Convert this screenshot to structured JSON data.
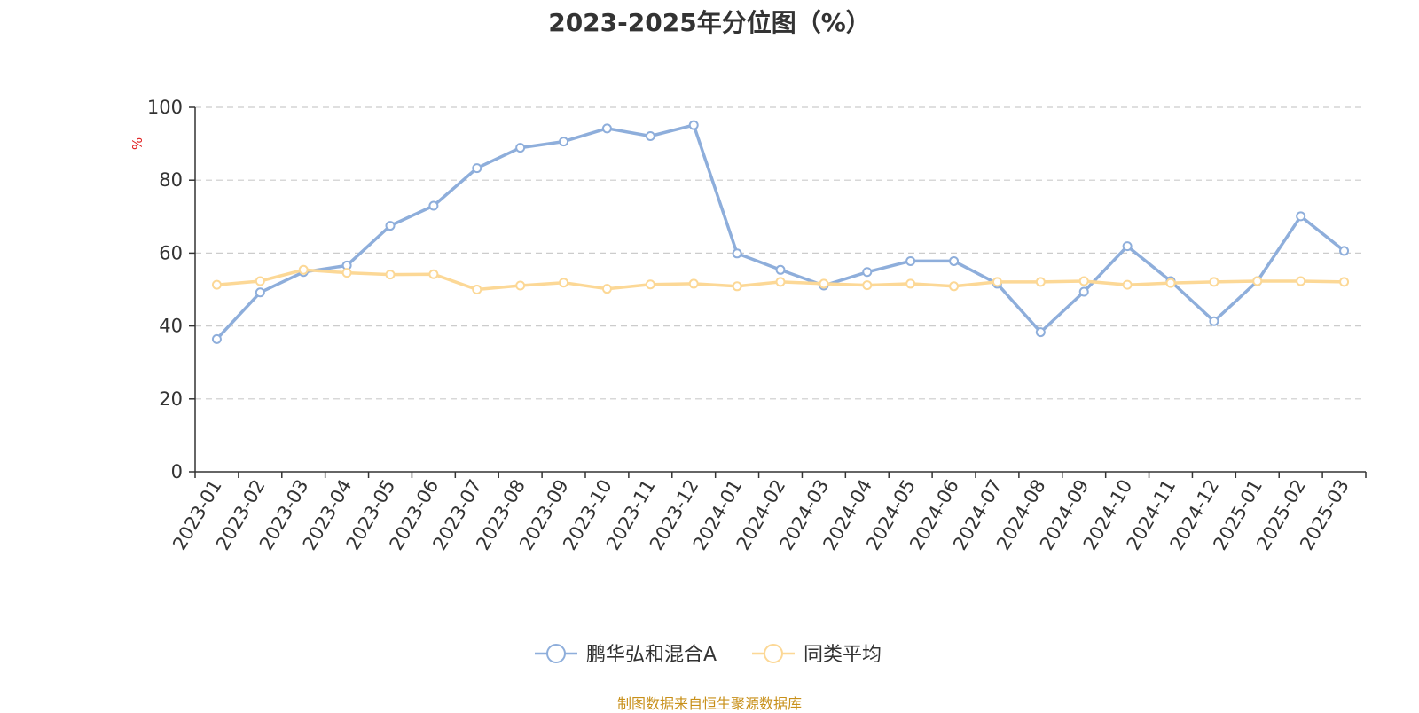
{
  "title": "2023-2025年分位图（%）",
  "source_note": "制图数据来自恒生聚源数据库",
  "colors": {
    "series1": "#8eaedb",
    "series2": "#fcd896",
    "grid": "#cccccc",
    "axis": "#333333",
    "ylabel": "#e02020",
    "source": "#c8901a"
  },
  "chart_data": {
    "type": "line",
    "title": "2023-2025年分位图（%）",
    "xlabel": "",
    "ylabel": "%",
    "ylim": [
      0,
      100
    ],
    "yticks": [
      0,
      20,
      40,
      60,
      80,
      100
    ],
    "grid": true,
    "legend_position": "bottom",
    "categories": [
      "2023-01",
      "2023-02",
      "2023-03",
      "2023-04",
      "2023-05",
      "2023-06",
      "2023-07",
      "2023-08",
      "2023-09",
      "2023-10",
      "2023-11",
      "2023-12",
      "2024-01",
      "2024-02",
      "2024-03",
      "2024-04",
      "2024-05",
      "2024-06",
      "2024-07",
      "2024-08",
      "2024-09",
      "2024-10",
      "2024-11",
      "2024-12",
      "2025-01",
      "2025-02",
      "2025-03"
    ],
    "series": [
      {
        "name": "鹏华弘和混合A",
        "values": [
          36.4,
          49.2,
          54.8,
          56.6,
          67.5,
          73.0,
          83.3,
          88.9,
          90.6,
          94.2,
          92.1,
          95.1,
          59.9,
          55.4,
          51.1,
          54.8,
          57.8,
          57.8,
          51.6,
          38.3,
          49.4,
          61.9,
          52.3,
          41.3,
          52.3,
          70.1,
          60.6
        ]
      },
      {
        "name": "同类平均",
        "values": [
          51.3,
          52.3,
          55.4,
          54.6,
          54.1,
          54.2,
          50.0,
          51.1,
          51.9,
          50.2,
          51.4,
          51.6,
          50.9,
          52.1,
          51.6,
          51.2,
          51.6,
          50.9,
          52.1,
          52.1,
          52.3,
          51.3,
          51.8,
          52.1,
          52.3,
          52.3,
          52.1
        ]
      }
    ]
  }
}
